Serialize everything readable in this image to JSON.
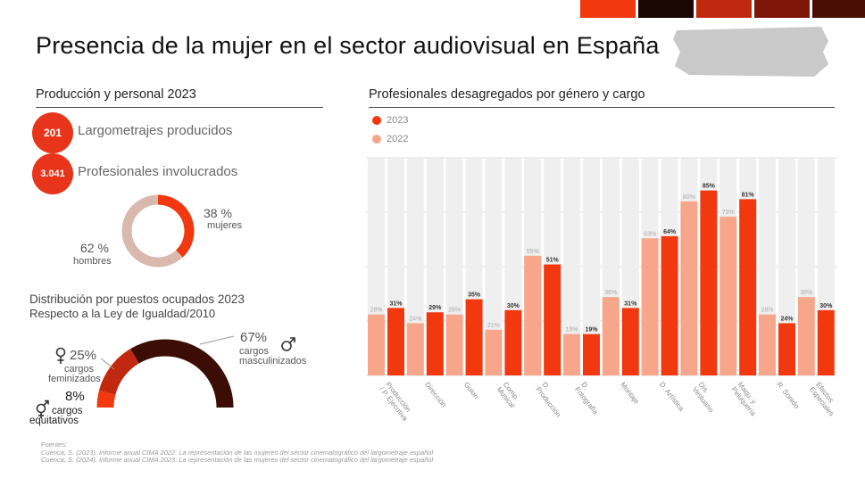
{
  "title": "Presencia de la mujer en el sector audiovisual en España",
  "colors": {
    "y2023": "#f2380f",
    "y2022": "#f7a58b",
    "track": "#efefef",
    "donut_women": "#f2380f",
    "donut_men": "#d9b8ae",
    "arc_fem": "#c0290f",
    "arc_masc": "#3b0d05",
    "arc_eq": "#f2380f"
  },
  "production": {
    "title": "Producción y personal 2023",
    "stats": [
      {
        "value": "201",
        "label": "Largometrajes producidos"
      },
      {
        "value": "3.041",
        "label": "Profesionales involucrados"
      }
    ],
    "women_pct": 38,
    "women_label": "38 %",
    "women_text": "mujeres",
    "men_label": "62 %",
    "men_text": "hombres"
  },
  "distribution": {
    "title": "Distribución por puestos ocupados 2023",
    "subtitle": "Respecto a la Ley de Igualdad/2010",
    "feminized_pct": 25,
    "feminized_label": "25%",
    "feminized_text_1": "cargos",
    "feminized_text_2": "feminizados",
    "masculinized_pct": 67,
    "masculinized_label": "67%",
    "masculinized_text_1": "cargos",
    "masculinized_text_2": "masculinizados",
    "equitable_pct": 8,
    "equitable_label": "8%",
    "equitable_text_1": "cargos",
    "equitable_text_2": "equitativos"
  },
  "chart_data": {
    "type": "bar",
    "title": "Profesionales desagregados por género y cargo",
    "categories": [
      "Producción / P. Ejecutiva",
      "Dirección",
      "Guion",
      "Comp. Musical",
      "D. Producción",
      "D. Fotografía",
      "Montaje",
      "D. Artística",
      "Dis. Vestuario",
      "Maqu. y Peluquería",
      "R. Sonido",
      "Efectos Especiales"
    ],
    "series": [
      {
        "name": "2022",
        "values": [
          28,
          24,
          28,
          21,
          55,
          19,
          36,
          63,
          80,
          73,
          28,
          36
        ]
      },
      {
        "name": "2023",
        "values": [
          31,
          29,
          35,
          30,
          51,
          19,
          31,
          64,
          85,
          81,
          24,
          30
        ]
      }
    ],
    "ylim": [
      0,
      100
    ],
    "grid": true,
    "legend": "top-left",
    "value_suffix": "%"
  },
  "sources": {
    "heading": "Fuentes:",
    "lines": [
      "Cuenca, S. (2023). Informe anual CIMA 2022: La representación de las mujeres del sector cinematográfico del largometraje español",
      "Cuenca, S. (2024). Informe anual CIMA 2023: La representación de las mujeres del sector cinematográfico del largometraje español"
    ]
  }
}
